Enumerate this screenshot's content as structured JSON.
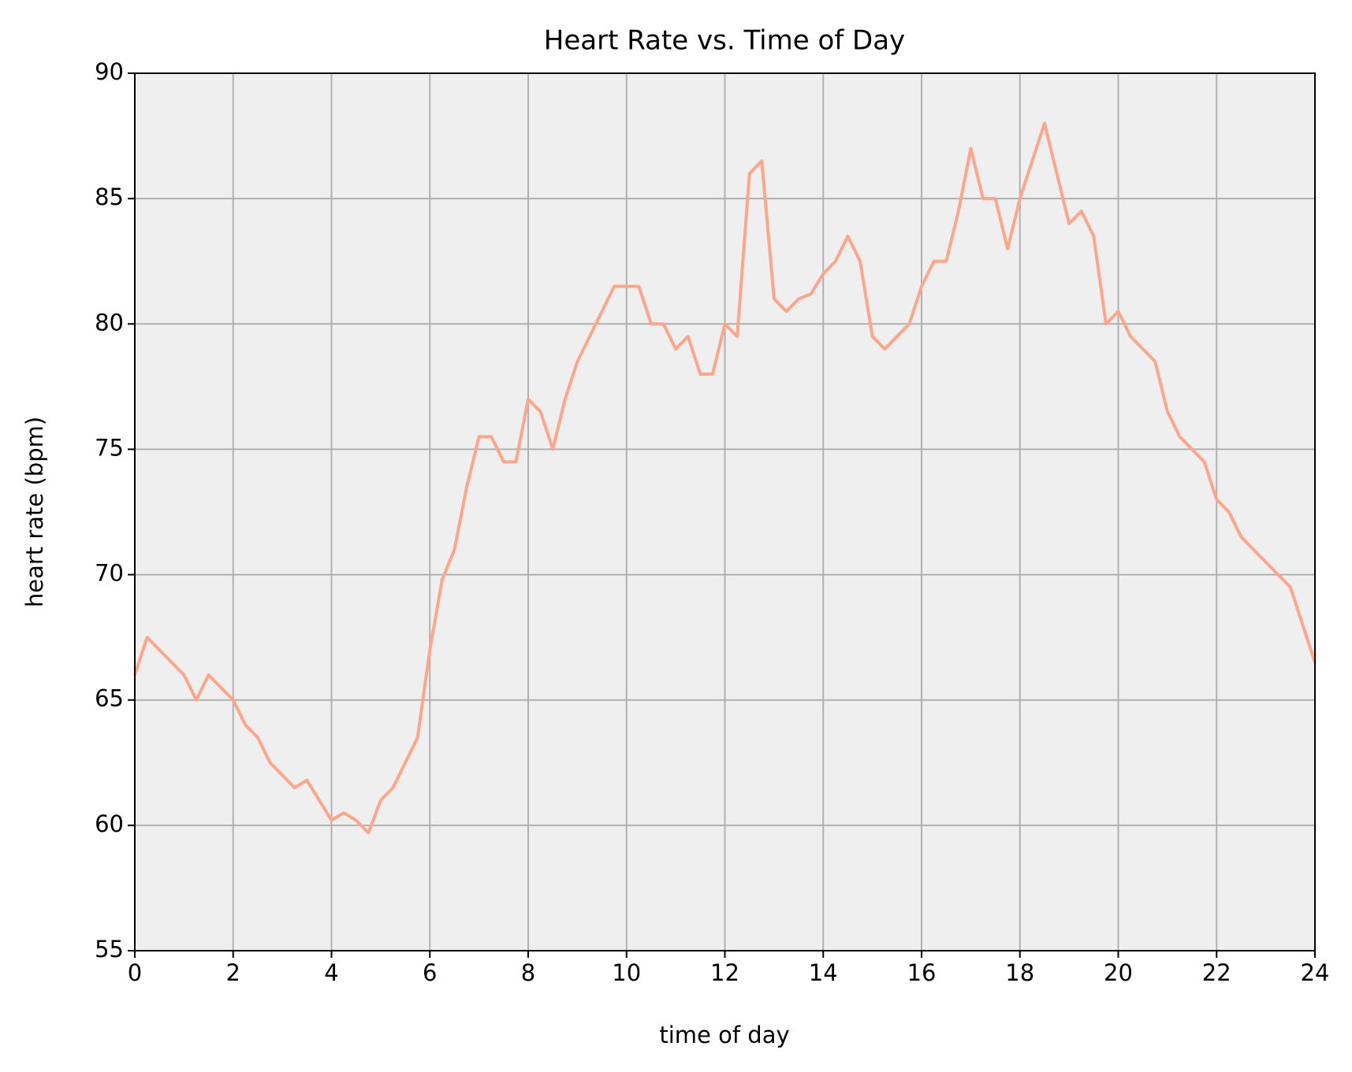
{
  "chart_data": {
    "type": "line",
    "title": "Heart Rate vs. Time of Day",
    "xlabel": "time of day",
    "ylabel": "heart rate (bpm)",
    "x": [
      0,
      0.25,
      0.5,
      0.75,
      1,
      1.25,
      1.5,
      1.75,
      2,
      2.25,
      2.5,
      2.75,
      3,
      3.25,
      3.5,
      3.75,
      4,
      4.25,
      4.5,
      4.75,
      5,
      5.25,
      5.5,
      5.75,
      6,
      6.25,
      6.5,
      6.75,
      7,
      7.25,
      7.5,
      7.75,
      8,
      8.25,
      8.5,
      8.75,
      9,
      9.25,
      9.5,
      9.75,
      10,
      10.25,
      10.5,
      10.75,
      11,
      11.25,
      11.5,
      11.75,
      12,
      12.25,
      12.5,
      12.75,
      13,
      13.25,
      13.5,
      13.75,
      14,
      14.25,
      14.5,
      14.75,
      15,
      15.25,
      15.5,
      15.75,
      16,
      16.25,
      16.5,
      16.75,
      17,
      17.25,
      17.5,
      17.75,
      18,
      18.25,
      18.5,
      18.75,
      19,
      19.25,
      19.5,
      19.75,
      20,
      20.25,
      20.5,
      20.75,
      21,
      21.25,
      21.5,
      21.75,
      22,
      22.25,
      22.5,
      22.75,
      23,
      23.25,
      23.5,
      23.75,
      24
    ],
    "series": [
      {
        "color": "#ffa58a",
        "values": [
          66,
          67.5,
          67,
          66.5,
          66,
          65,
          66,
          65.5,
          65,
          64,
          63.5,
          62.5,
          62,
          61.5,
          61.8,
          61,
          60.2,
          60.5,
          60.2,
          59.7,
          61,
          61.5,
          62.5,
          63.5,
          67,
          69.8,
          71,
          73.5,
          75.5,
          75.5,
          74.5,
          74.5,
          77,
          76.5,
          75,
          77,
          78.5,
          79.5,
          80.5,
          81.5,
          81.5,
          81.5,
          80,
          80,
          79,
          79.5,
          78,
          78,
          80,
          79.5,
          86,
          86.5,
          81,
          80.5,
          81,
          81.2,
          82,
          82.5,
          83.5,
          82.5,
          79.5,
          79,
          79.5,
          80,
          81.5,
          82.5,
          82.5,
          84.5,
          87,
          85,
          85,
          83,
          85,
          86.5,
          88,
          86,
          84,
          84.5,
          83.5,
          80,
          80.5,
          79.5,
          79,
          78.5,
          76.5,
          75.5,
          75,
          74.5,
          73,
          72.5,
          71.5,
          71,
          70.5,
          70,
          69.5,
          68,
          66.5
        ]
      }
    ],
    "xlim": [
      0,
      24
    ],
    "xticks": [
      0,
      2,
      4,
      6,
      8,
      10,
      12,
      14,
      16,
      18,
      20,
      22,
      24
    ],
    "ylim": [
      55,
      90
    ],
    "yticks": [
      55,
      60,
      65,
      70,
      75,
      80,
      85,
      90
    ],
    "grid": true
  }
}
